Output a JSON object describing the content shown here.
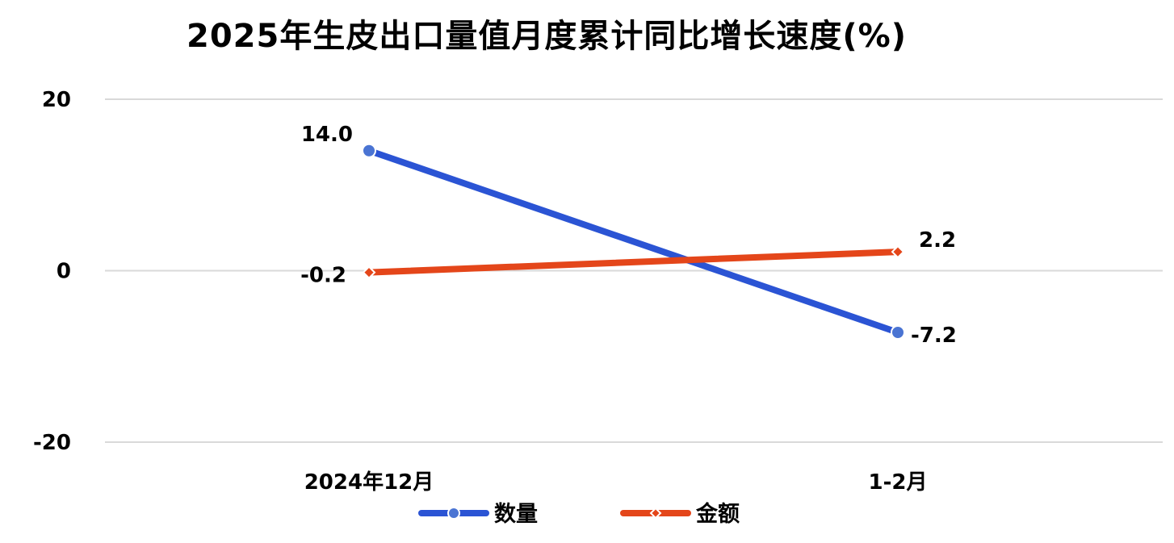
{
  "chart_data": {
    "type": "line",
    "title": "2025年生皮出口量值月度累计同比增长速度(%)",
    "categories": [
      "2024年12月",
      "1-2月"
    ],
    "series": [
      {
        "name": "数量",
        "values": [
          14.0,
          -7.2
        ],
        "labels": [
          "14.0",
          "-7.2"
        ],
        "color": "#2b54d4",
        "marker": "circle"
      },
      {
        "name": "金额",
        "values": [
          -0.2,
          2.2
        ],
        "labels": [
          "-0.2",
          "2.2"
        ],
        "color": "#e4461a",
        "marker": "diamond"
      }
    ],
    "ylim": [
      -20,
      20
    ],
    "yticks": [
      20,
      0,
      -20
    ],
    "ytick_labels": [
      "20",
      "0",
      "-20"
    ],
    "grid": true,
    "legend_position": "bottom"
  }
}
